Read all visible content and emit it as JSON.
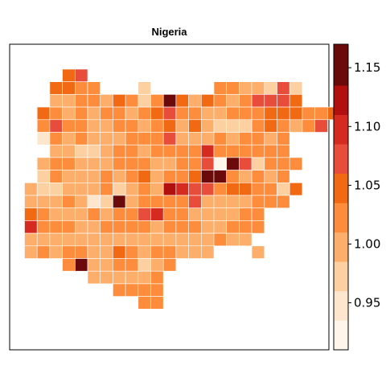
{
  "title": "Nigeria",
  "legend": {
    "position": "right",
    "min": 0.91,
    "max": 1.17,
    "breaks": [
      0.91,
      0.935,
      0.96,
      0.985,
      1.01,
      1.035,
      1.06,
      1.085,
      1.11,
      1.135,
      1.17
    ],
    "colors": [
      "#fff5eb",
      "#fee6ce",
      "#fdd0a2",
      "#fdae6b",
      "#fd8d3c",
      "#f16913",
      "#e84c3a",
      "#d42a20",
      "#b1100f",
      "#6b0a0a"
    ],
    "ticks": [
      {
        "value": 0.95,
        "label": "0.95"
      },
      {
        "value": 1.0,
        "label": "1.00"
      },
      {
        "value": 1.05,
        "label": "1.05"
      },
      {
        "value": 1.1,
        "label": "1.10"
      },
      {
        "value": 1.15,
        "label": "1.15"
      }
    ]
  },
  "map_data": {
    "type": "grid-choropleth",
    "grid_origin": {
      "col0": 1,
      "row0": 0
    },
    "value_rows": [
      {
        "row": 0,
        "start": 4,
        "values": [
          1.04,
          1.06
        ]
      },
      {
        "row": 1,
        "start": 3,
        "values": [
          1.04,
          1.04,
          1.02,
          1.01,
          null,
          null,
          null,
          0.98,
          null,
          null,
          null,
          null,
          null,
          1.02,
          1.02,
          1.0,
          1.0,
          0.96,
          1.08,
          0.97
        ]
      },
      {
        "row": 2,
        "start": 3,
        "values": [
          0.99,
          0.99,
          1.01,
          1.02,
          1.0,
          1.04,
          1.01,
          0.98,
          1.03,
          1.15,
          1.04,
          0.99,
          1.04,
          1.02,
          1.0,
          1.03,
          1.06,
          1.08,
          1.07,
          1.05
        ]
      },
      {
        "row": 3,
        "start": 2,
        "values": [
          1.05,
          1.02,
          1.0,
          1.01,
          1.0,
          1.01,
          1.02,
          1.0,
          1.01,
          1.04,
          1.06,
          1.01,
          1.02,
          1.0,
          1.0,
          1.01,
          1.02,
          1.02,
          1.04,
          1.04,
          1.04,
          1.01,
          1.01,
          1.05
        ]
      },
      {
        "row": 4,
        "start": 2,
        "values": [
          1.02,
          1.06,
          1.03,
          1.01,
          1.0,
          1.0,
          1.01,
          1.02,
          1.0,
          1.01,
          1.04,
          0.99,
          1.04,
          1.0,
          0.98,
          0.98,
          0.98,
          1.03,
          1.04,
          1.03,
          1.0,
          1.02,
          1.06
        ]
      },
      {
        "row": 5,
        "start": 2,
        "values": [
          0.95,
          1.02,
          1.0,
          1.01,
          1.0,
          1.0,
          1.0,
          1.01,
          1.02,
          1.01,
          1.08,
          1.0,
          1.0,
          1.0,
          1.01,
          1.0,
          1.01,
          1.03,
          0.99,
          1.01
        ]
      },
      {
        "row": 6,
        "start": 3,
        "values": [
          0.99,
          1.0,
          0.98,
          0.98,
          1.0,
          1.01,
          1.01,
          1.0,
          1.02,
          1.01,
          1.01,
          1.01,
          1.1,
          1.03,
          1.03,
          1.01,
          1.03,
          1.03,
          1.01
        ]
      },
      {
        "row": 7,
        "start": 2,
        "values": [
          1.0,
          1.03,
          1.02,
          1.0,
          1.0,
          1.0,
          1.01,
          1.02,
          1.01,
          1.0,
          1.0,
          1.02,
          1.02,
          1.06,
          0.91,
          1.14,
          1.06,
          0.96,
          1.02,
          1.02,
          1.02
        ]
      },
      {
        "row": 8,
        "start": 2,
        "values": [
          0.98,
          1.02,
          1.0,
          1.0,
          1.0,
          1.01,
          1.0,
          1.02,
          1.04,
          1.0,
          1.03,
          1.01,
          1.05,
          1.16,
          1.15,
          1.02,
          1.0,
          1.03,
          1.0,
          1.02
        ]
      },
      {
        "row": 9,
        "start": 1,
        "values": [
          0.99,
          0.98,
          0.98,
          0.99,
          0.99,
          1.0,
          1.02,
          0.98,
          1.0,
          1.01,
          0.99,
          1.13,
          1.09,
          1.08,
          1.06,
          1.02,
          1.04,
          1.05,
          1.03,
          1.03,
          0.97,
          1.04
        ]
      },
      {
        "row": 10,
        "start": 1,
        "values": [
          0.99,
          1.0,
          1.0,
          1.01,
          1.0,
          0.95,
          0.96,
          1.16,
          1.0,
          1.01,
          1.03,
          1.02,
          1.03,
          1.07,
          1.0,
          0.99,
          1.0,
          1.0,
          1.01,
          1.02,
          1.03
        ]
      },
      {
        "row": 11,
        "start": 1,
        "values": [
          1.05,
          1.01,
          1.0,
          1.0,
          1.0,
          1.01,
          1.0,
          1.01,
          1.02,
          1.08,
          1.09,
          1.01,
          1.02,
          1.0,
          0.99,
          0.99,
          1.0,
          1.02,
          1.02
        ]
      },
      {
        "row": 12,
        "start": 1,
        "values": [
          1.09,
          1.01,
          1.01,
          1.01,
          1.0,
          1.0,
          1.01,
          1.02,
          1.01,
          1.01,
          1.0,
          1.01,
          1.01,
          1.02,
          1.0,
          1.0,
          1.01,
          1.01,
          1.02
        ]
      },
      {
        "row": 13,
        "start": 1,
        "values": [
          0.99,
          1.0,
          1.0,
          1.0,
          1.0,
          1.0,
          1.0,
          1.0,
          1.0,
          1.0,
          1.0,
          1.0,
          1.0,
          1.0,
          1.0,
          1.01,
          1.0,
          1.0
        ]
      },
      {
        "row": 14,
        "start": 1,
        "values": [
          1.0,
          1.01,
          1.0,
          1.03,
          1.01,
          1.0,
          1.0,
          1.05,
          1.01,
          1.0,
          1.01,
          1.03,
          1.0,
          1.0,
          1.0,
          null,
          null,
          null,
          0.99
        ]
      },
      {
        "row": 15,
        "start": 4,
        "values": [
          1.03,
          1.16,
          0.99,
          1.0,
          1.01,
          1.01,
          0.98,
          0.99,
          1.01
        ]
      },
      {
        "row": 16,
        "start": 6,
        "values": [
          1.0,
          1.0,
          1.0,
          1.0,
          0.99,
          1.03
        ]
      },
      {
        "row": 17,
        "start": 8,
        "values": [
          1.01,
          1.01,
          1.01,
          1.03
        ]
      },
      {
        "row": 18,
        "start": 10,
        "values": [
          1.01,
          1.01
        ]
      }
    ]
  }
}
